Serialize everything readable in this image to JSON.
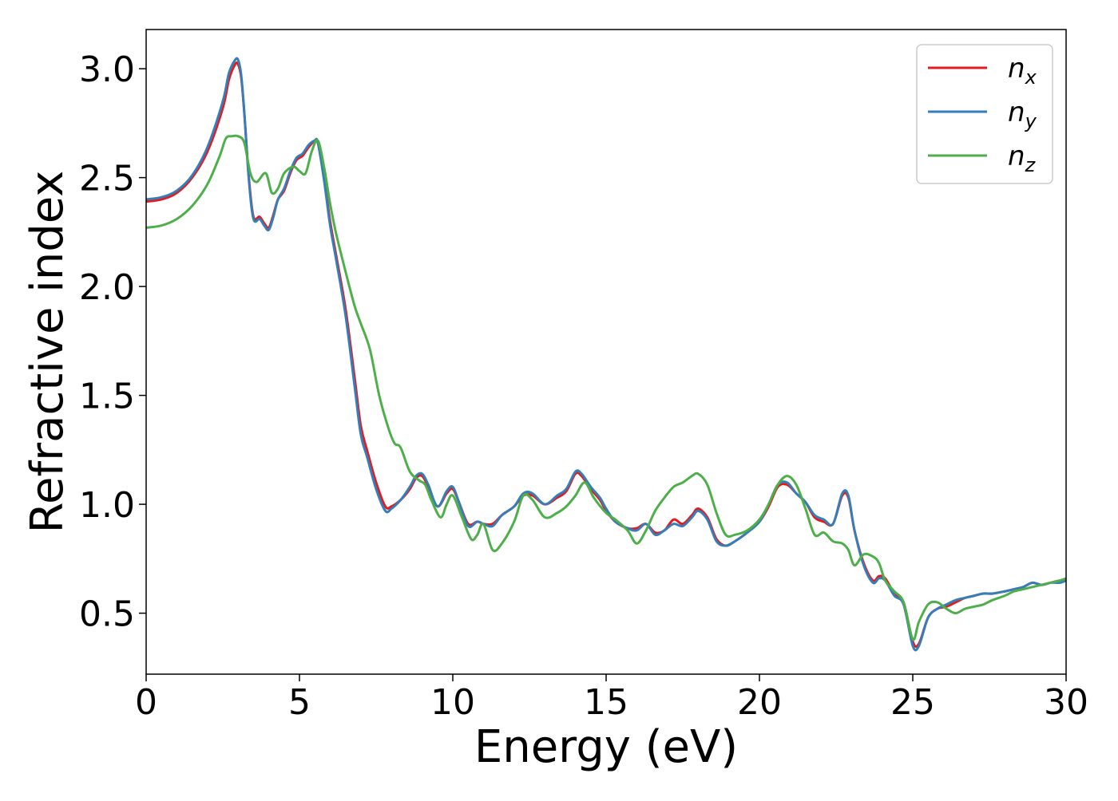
{
  "chart_data": {
    "type": "line",
    "xlabel": "Energy (eV)",
    "ylabel": "Refractive index",
    "xlim": [
      0,
      30
    ],
    "ylim": [
      0.22,
      3.18
    ],
    "xticks": [
      0,
      5,
      10,
      15,
      20,
      25,
      30
    ],
    "xtick_labels": [
      "0",
      "5",
      "10",
      "15",
      "20",
      "25",
      "30"
    ],
    "yticks": [
      0.5,
      1.0,
      1.5,
      2.0,
      2.5,
      3.0
    ],
    "ytick_labels": [
      "0.5",
      "1.0",
      "1.5",
      "2.0",
      "2.5",
      "3.0"
    ],
    "grid": false,
    "legend_position": "top-right",
    "series": [
      {
        "name": "n_x",
        "label_base": "n",
        "label_sub": "x",
        "color": "#e41a1c",
        "x": [
          0,
          0.5,
          1.0,
          1.5,
          2.0,
          2.5,
          2.7,
          2.9,
          3.0,
          3.1,
          3.2,
          3.35,
          3.5,
          3.7,
          3.85,
          4.0,
          4.15,
          4.3,
          4.5,
          4.7,
          4.9,
          5.1,
          5.3,
          5.5,
          5.6,
          5.8,
          6.0,
          6.2,
          6.5,
          6.8,
          7.0,
          7.2,
          7.5,
          7.8,
          8.0,
          8.3,
          8.6,
          8.8,
          9.0,
          9.2,
          9.5,
          9.8,
          10.0,
          10.2,
          10.5,
          10.8,
          11.0,
          11.3,
          11.6,
          12.0,
          12.3,
          12.6,
          13.0,
          13.4,
          13.7,
          14.0,
          14.2,
          14.5,
          14.8,
          15.0,
          15.3,
          15.7,
          16.0,
          16.3,
          16.6,
          16.9,
          17.2,
          17.5,
          17.8,
          18.0,
          18.3,
          18.6,
          18.9,
          19.2,
          19.6,
          20.0,
          20.3,
          20.6,
          20.9,
          21.2,
          21.5,
          21.8,
          22.1,
          22.4,
          22.7,
          22.9,
          23.1,
          23.4,
          23.7,
          23.9,
          24.1,
          24.4,
          24.7,
          25.0,
          25.2,
          25.5,
          25.8,
          26.1,
          26.4,
          26.7,
          27.0,
          27.3,
          27.6,
          28.0,
          28.3,
          28.6,
          28.9,
          29.2,
          29.5,
          29.8,
          30.0
        ],
        "y": [
          2.39,
          2.4,
          2.43,
          2.5,
          2.62,
          2.82,
          2.95,
          3.02,
          3.02,
          2.96,
          2.8,
          2.5,
          2.32,
          2.32,
          2.29,
          2.27,
          2.33,
          2.4,
          2.44,
          2.52,
          2.58,
          2.6,
          2.64,
          2.67,
          2.66,
          2.5,
          2.3,
          2.14,
          1.9,
          1.58,
          1.36,
          1.25,
          1.1,
          0.99,
          0.99,
          1.02,
          1.07,
          1.12,
          1.13,
          1.08,
          0.99,
          1.05,
          1.07,
          1.01,
          0.91,
          0.92,
          0.91,
          0.91,
          0.95,
          0.99,
          1.04,
          1.04,
          1.0,
          1.03,
          1.06,
          1.14,
          1.13,
          1.07,
          1.02,
          0.97,
          0.92,
          0.89,
          0.89,
          0.91,
          0.87,
          0.88,
          0.93,
          0.91,
          0.95,
          0.98,
          0.94,
          0.84,
          0.81,
          0.83,
          0.87,
          0.92,
          0.99,
          1.08,
          1.09,
          1.05,
          1.01,
          0.94,
          0.92,
          0.91,
          1.04,
          1.03,
          0.88,
          0.73,
          0.65,
          0.67,
          0.66,
          0.59,
          0.55,
          0.37,
          0.36,
          0.48,
          0.52,
          0.53,
          0.55,
          0.57,
          0.58,
          0.59,
          0.59,
          0.6,
          0.61,
          0.62,
          0.64,
          0.63,
          0.64,
          0.65,
          0.65
        ]
      },
      {
        "name": "n_y",
        "label_base": "n",
        "label_sub": "y",
        "color": "#377eb8",
        "x": [
          0,
          0.5,
          1.0,
          1.5,
          2.0,
          2.5,
          2.7,
          2.9,
          3.0,
          3.1,
          3.2,
          3.35,
          3.5,
          3.7,
          3.85,
          4.0,
          4.15,
          4.3,
          4.5,
          4.7,
          4.9,
          5.1,
          5.3,
          5.5,
          5.6,
          5.8,
          6.0,
          6.2,
          6.5,
          6.8,
          7.0,
          7.2,
          7.5,
          7.8,
          8.0,
          8.3,
          8.6,
          8.8,
          9.0,
          9.2,
          9.5,
          9.8,
          10.0,
          10.2,
          10.5,
          10.8,
          11.0,
          11.3,
          11.6,
          12.0,
          12.3,
          12.6,
          13.0,
          13.4,
          13.7,
          14.0,
          14.2,
          14.5,
          14.8,
          15.0,
          15.3,
          15.7,
          16.0,
          16.3,
          16.6,
          16.9,
          17.2,
          17.5,
          17.8,
          18.0,
          18.3,
          18.6,
          18.9,
          19.2,
          19.6,
          20.0,
          20.3,
          20.6,
          20.9,
          21.2,
          21.5,
          21.8,
          22.1,
          22.4,
          22.7,
          22.9,
          23.1,
          23.4,
          23.7,
          23.9,
          24.1,
          24.4,
          24.7,
          25.0,
          25.2,
          25.5,
          25.8,
          26.1,
          26.4,
          26.7,
          27.0,
          27.3,
          27.6,
          28.0,
          28.3,
          28.6,
          28.9,
          29.2,
          29.5,
          29.8,
          30.0
        ],
        "y": [
          2.4,
          2.41,
          2.44,
          2.51,
          2.64,
          2.85,
          2.98,
          3.04,
          3.04,
          2.97,
          2.8,
          2.49,
          2.31,
          2.31,
          2.28,
          2.26,
          2.32,
          2.4,
          2.45,
          2.53,
          2.59,
          2.61,
          2.65,
          2.67,
          2.66,
          2.49,
          2.28,
          2.12,
          1.87,
          1.54,
          1.32,
          1.22,
          1.07,
          0.97,
          0.98,
          1.02,
          1.08,
          1.13,
          1.14,
          1.09,
          0.99,
          1.06,
          1.08,
          1.01,
          0.9,
          0.92,
          0.91,
          0.9,
          0.95,
          0.99,
          1.05,
          1.05,
          1.0,
          1.04,
          1.07,
          1.15,
          1.14,
          1.08,
          1.03,
          0.98,
          0.92,
          0.89,
          0.88,
          0.91,
          0.86,
          0.88,
          0.91,
          0.9,
          0.94,
          0.97,
          0.93,
          0.83,
          0.81,
          0.83,
          0.87,
          0.92,
          1.0,
          1.09,
          1.1,
          1.05,
          1.01,
          0.95,
          0.93,
          0.91,
          1.05,
          1.04,
          0.88,
          0.72,
          0.64,
          0.66,
          0.65,
          0.58,
          0.54,
          0.35,
          0.35,
          0.48,
          0.52,
          0.54,
          0.56,
          0.57,
          0.58,
          0.59,
          0.59,
          0.6,
          0.61,
          0.62,
          0.64,
          0.63,
          0.64,
          0.64,
          0.65
        ]
      },
      {
        "name": "n_z",
        "label_base": "n",
        "label_sub": "z",
        "color": "#4daf4a",
        "x": [
          0,
          0.5,
          1.0,
          1.5,
          2.0,
          2.4,
          2.6,
          2.8,
          3.0,
          3.2,
          3.4,
          3.6,
          3.9,
          4.1,
          4.3,
          4.5,
          4.8,
          5.0,
          5.2,
          5.4,
          5.6,
          5.8,
          6.0,
          6.2,
          6.5,
          6.8,
          7.0,
          7.3,
          7.6,
          7.9,
          8.1,
          8.3,
          8.6,
          8.9,
          9.1,
          9.3,
          9.6,
          9.8,
          10.0,
          10.3,
          10.6,
          10.8,
          11.0,
          11.3,
          11.6,
          12.0,
          12.3,
          12.6,
          13.0,
          13.4,
          13.7,
          14.0,
          14.3,
          14.6,
          15.0,
          15.3,
          15.7,
          16.0,
          16.3,
          16.6,
          16.9,
          17.2,
          17.5,
          17.8,
          18.0,
          18.3,
          18.6,
          18.9,
          19.2,
          19.6,
          20.0,
          20.3,
          20.6,
          20.9,
          21.2,
          21.5,
          21.8,
          22.1,
          22.4,
          22.7,
          22.9,
          23.1,
          23.4,
          23.7,
          23.9,
          24.1,
          24.4,
          24.7,
          25.0,
          25.2,
          25.5,
          25.8,
          26.1,
          26.4,
          26.7,
          27.0,
          27.3,
          27.6,
          28.0,
          28.3,
          28.6,
          28.9,
          29.2,
          29.5,
          29.8,
          30.0
        ],
        "y": [
          2.27,
          2.28,
          2.31,
          2.37,
          2.47,
          2.6,
          2.68,
          2.69,
          2.69,
          2.66,
          2.52,
          2.48,
          2.52,
          2.43,
          2.45,
          2.52,
          2.55,
          2.53,
          2.52,
          2.62,
          2.67,
          2.55,
          2.38,
          2.24,
          2.07,
          1.91,
          1.83,
          1.71,
          1.5,
          1.35,
          1.28,
          1.26,
          1.15,
          1.11,
          1.09,
          1.02,
          0.94,
          1.0,
          1.04,
          0.94,
          0.84,
          0.86,
          0.91,
          0.79,
          0.82,
          0.92,
          1.04,
          1.02,
          0.94,
          0.96,
          0.99,
          1.04,
          1.1,
          1.03,
          0.96,
          0.93,
          0.88,
          0.82,
          0.88,
          0.97,
          1.03,
          1.08,
          1.1,
          1.13,
          1.14,
          1.09,
          0.96,
          0.86,
          0.86,
          0.88,
          0.93,
          1.0,
          1.09,
          1.13,
          1.09,
          0.98,
          0.86,
          0.87,
          0.83,
          0.82,
          0.79,
          0.72,
          0.77,
          0.76,
          0.73,
          0.65,
          0.6,
          0.55,
          0.38,
          0.46,
          0.54,
          0.55,
          0.52,
          0.5,
          0.52,
          0.53,
          0.54,
          0.56,
          0.58,
          0.6,
          0.61,
          0.62,
          0.63,
          0.64,
          0.65,
          0.66
        ]
      }
    ]
  }
}
